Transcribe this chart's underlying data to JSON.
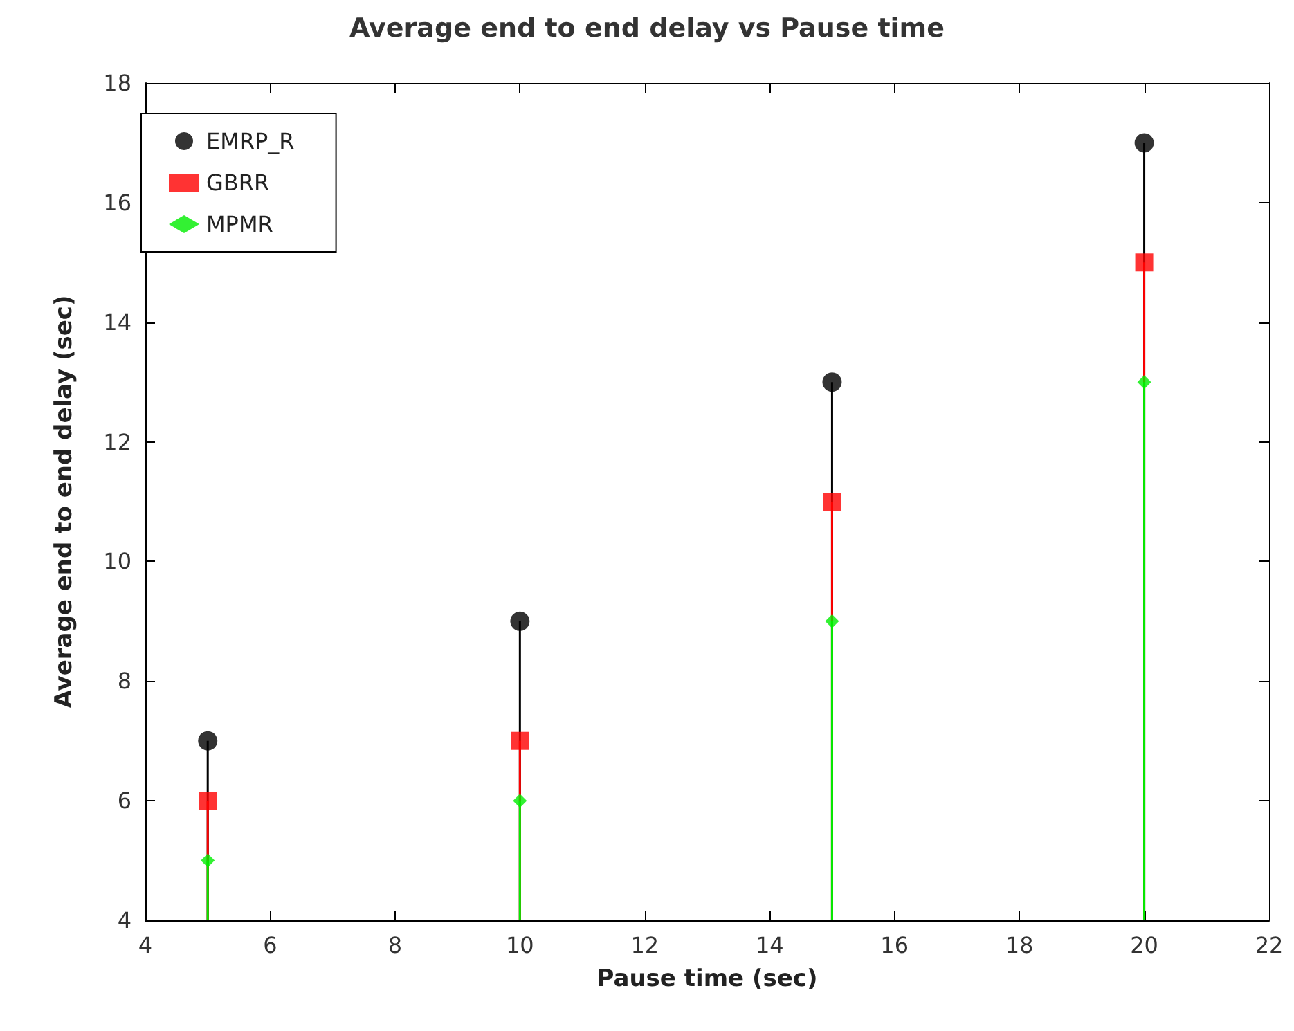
{
  "chart_data": {
    "type": "lollipop",
    "title": "Average end to end delay vs Pause time",
    "xlabel": "Pause time (sec)",
    "ylabel": "Average end to end delay (sec)",
    "x": [
      5,
      10,
      15,
      20
    ],
    "series": [
      {
        "name": "EMRP_R",
        "color": "#000000",
        "marker": "circle",
        "values": [
          7,
          9,
          13,
          17
        ]
      },
      {
        "name": "GBRR",
        "color": "#ff0000",
        "marker": "square",
        "values": [
          6,
          7,
          11,
          15
        ]
      },
      {
        "name": "MPMR",
        "color": "#00ee00",
        "marker": "diamond",
        "values": [
          5,
          6,
          9,
          13
        ]
      }
    ],
    "xlim": [
      4,
      22
    ],
    "xticks": [
      4,
      6,
      8,
      10,
      12,
      14,
      16,
      18,
      20,
      22
    ],
    "ylim": [
      4,
      18
    ],
    "yticks": [
      4,
      6,
      8,
      10,
      12,
      14,
      16,
      18
    ],
    "grid": false,
    "legend": "top left"
  }
}
